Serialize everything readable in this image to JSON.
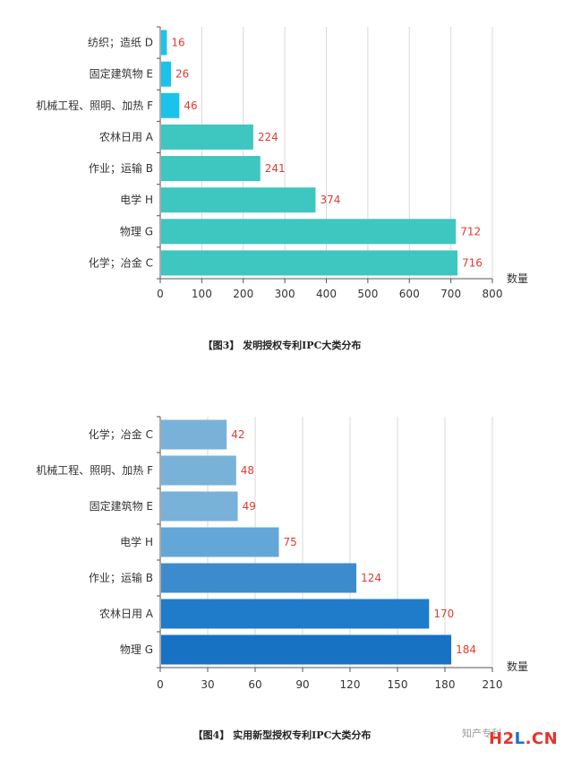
{
  "chart_data": [
    {
      "type": "bar",
      "orientation": "horizontal",
      "categories": [
        "纺织；造纸 D",
        "固定建筑物 E",
        "机械工程、照明、加热 F",
        "农林日用 A",
        "作业；运输 B",
        "电学 H",
        "物理 G",
        "化学；冶金 C"
      ],
      "values": [
        16,
        26,
        46,
        224,
        241,
        374,
        712,
        716
      ],
      "colors": [
        "#1bc3ea",
        "#1bc3ea",
        "#1bc3ea",
        "#3ec6c1",
        "#3ec6c1",
        "#3ec6c1",
        "#3ec6c1",
        "#3ec6c1"
      ],
      "xlim": [
        0,
        800
      ],
      "xticks": [
        0,
        100,
        200,
        300,
        400,
        500,
        600,
        700,
        800
      ],
      "xlabel": "数量",
      "grid": true,
      "data_labels": true,
      "caption": "【图3】 发明授权专利IPC大类分布"
    },
    {
      "type": "bar",
      "orientation": "horizontal",
      "categories": [
        "化学；冶金 C",
        "机械工程、照明、加热 F",
        "固定建筑物 E",
        "电学 H",
        "作业；运输 B",
        "农林日用 A",
        "物理 G"
      ],
      "values": [
        42,
        48,
        49,
        75,
        124,
        170,
        184
      ],
      "colors": [
        "#79b2d9",
        "#79b2d9",
        "#79b2d9",
        "#62a7d8",
        "#3c8ccd",
        "#1f7ccb",
        "#1872c4"
      ],
      "xlim": [
        0,
        210
      ],
      "xticks": [
        0,
        30,
        60,
        90,
        120,
        150,
        180,
        210
      ],
      "xlabel": "数量",
      "grid": true,
      "data_labels": true,
      "caption": "【图4】 实用新型授权专利IPC大类分布"
    }
  ],
  "watermark": {
    "wechat_text": "知产专利",
    "brand_h2": "H2",
    "brand_l": "L",
    "brand_cn": ".CN",
    "brand_colors": {
      "h2": "#e8322a",
      "l": "#1a73c8",
      "cn": "#e8322a"
    }
  }
}
